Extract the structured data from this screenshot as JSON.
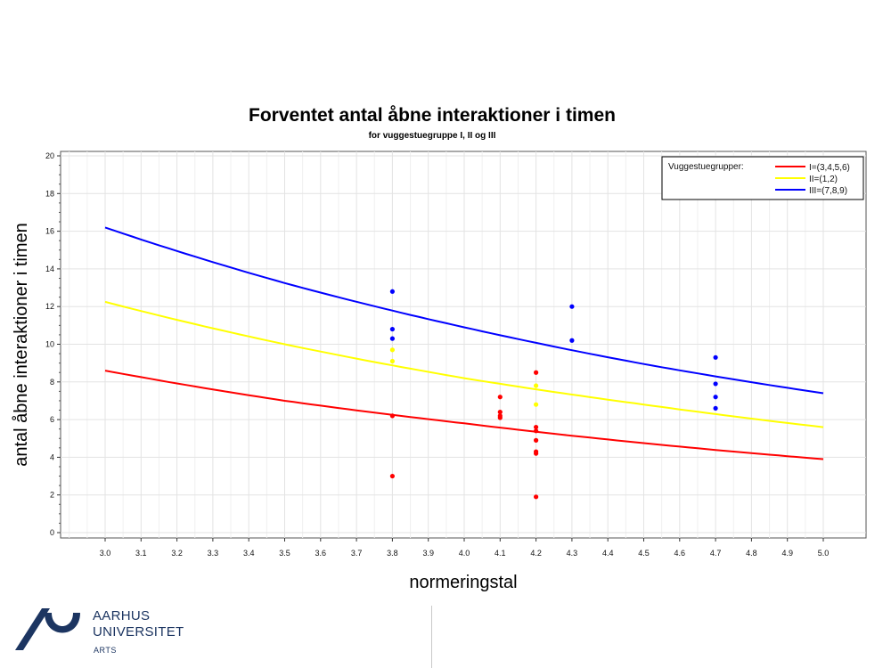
{
  "chart_data": {
    "type": "line",
    "title": "Forventet antal åbne interaktioner i timen",
    "subtitle": "for vuggestuegruppe I, II og III",
    "xlabel": "normeringstal",
    "ylabel": "antal åbne interaktioner i timen",
    "xlim": [
      2.0,
      5.0
    ],
    "ylim": [
      0,
      20
    ],
    "x_ticks": [
      "3.0",
      "3.1",
      "3.2",
      "3.3",
      "3.4",
      "3.5",
      "3.6",
      "3.7",
      "3.8",
      "3.9",
      "4.0",
      "4.1",
      "4.2",
      "4.3",
      "4.4",
      "4.5",
      "4.6",
      "4.7",
      "4.8",
      "4.9",
      "5.0"
    ],
    "y_ticks": [
      "0",
      "2",
      "4",
      "6",
      "8",
      "10",
      "12",
      "14",
      "16",
      "18",
      "20"
    ],
    "grid": true,
    "legend": {
      "title": "Vuggestuegrupper:",
      "placement": "top-right"
    },
    "series": [
      {
        "name": "I=(3,4,5,6)",
        "color": "#ff0000",
        "line": {
          "x": [
            3.0,
            3.5,
            4.0,
            4.5,
            5.0
          ],
          "y": [
            8.6,
            7.0,
            5.8,
            4.75,
            3.9
          ]
        },
        "points": {
          "x": [
            3.8,
            3.8,
            4.1,
            4.1,
            4.1,
            4.1,
            4.2,
            4.2,
            4.2,
            4.2,
            4.2,
            4.2,
            4.2
          ],
          "y": [
            6.2,
            3.0,
            7.2,
            6.4,
            6.2,
            6.1,
            8.5,
            5.6,
            5.4,
            4.9,
            4.3,
            4.2,
            1.9
          ]
        }
      },
      {
        "name": "II=(1,2)",
        "color": "#ffff00",
        "line": {
          "x": [
            3.0,
            3.5,
            4.0,
            4.5,
            5.0
          ],
          "y": [
            12.25,
            10.0,
            8.2,
            6.8,
            5.6
          ]
        },
        "points": {
          "x": [
            3.8,
            3.8,
            4.2,
            4.2
          ],
          "y": [
            9.7,
            9.1,
            7.8,
            6.8
          ]
        }
      },
      {
        "name": "III=(7,8,9)",
        "color": "#0000ff",
        "line": {
          "x": [
            3.0,
            3.5,
            4.0,
            4.5,
            5.0
          ],
          "y": [
            16.2,
            13.25,
            10.9,
            8.95,
            7.4
          ]
        },
        "points": {
          "x": [
            3.8,
            3.8,
            3.8,
            4.3,
            4.3,
            4.7,
            4.7,
            4.7,
            4.7
          ],
          "y": [
            12.8,
            10.8,
            10.3,
            12.0,
            10.2,
            9.3,
            7.9,
            7.2,
            6.6
          ]
        }
      }
    ]
  },
  "footer": {
    "logo_line1": "AARHUS",
    "logo_line2": "UNIVERSITET",
    "logo_sub": "ARTS",
    "logo_color": "#1c3561"
  }
}
